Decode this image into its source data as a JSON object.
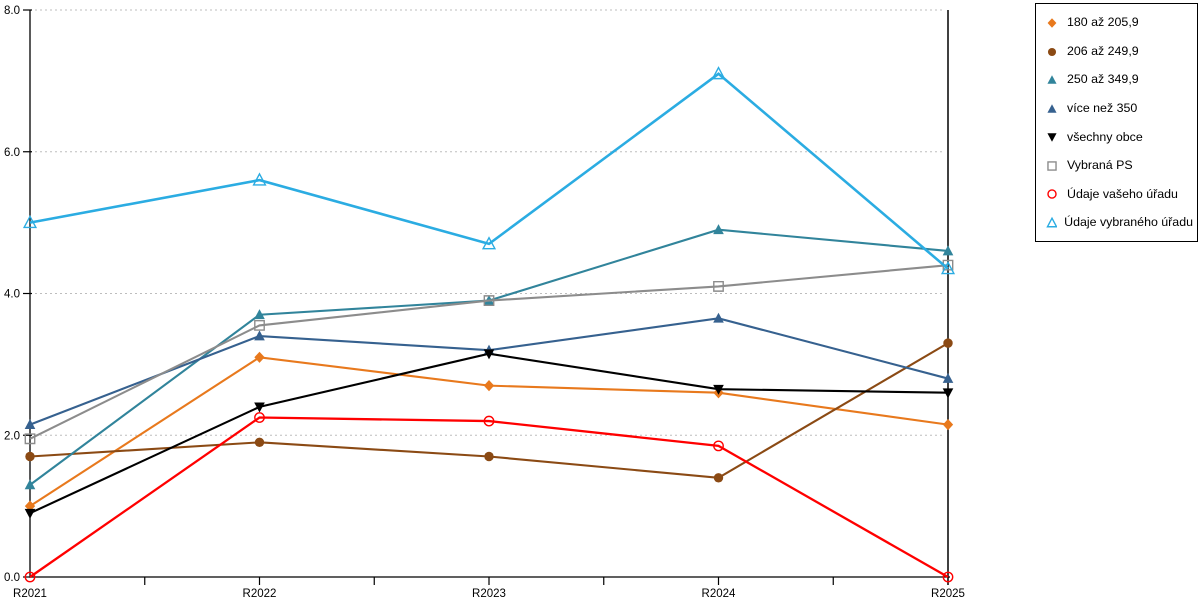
{
  "chart_data": {
    "type": "line",
    "title": "",
    "xlabel": "",
    "ylabel": "",
    "categories": [
      "R2021",
      "R2022",
      "R2023",
      "R2024",
      "R2025"
    ],
    "yticks": [
      "0.0",
      "2.0",
      "4.0",
      "6.0",
      "8.0"
    ],
    "ylim": [
      0,
      8
    ],
    "grid": "horizontal-dotted",
    "legend_position": "top-right-outside",
    "colors": {
      "axis": "#000000",
      "gridline": "#bdbdbd",
      "background": "#ffffff"
    },
    "series": [
      {
        "name": "180 až 205,9",
        "color": "#e8791d",
        "marker": "diamond",
        "marker_fill": "solid",
        "values": [
          1.0,
          3.1,
          2.7,
          2.6,
          2.15
        ]
      },
      {
        "name": "206 až 249,9",
        "color": "#8b4a14",
        "marker": "circle",
        "marker_fill": "solid",
        "values": [
          1.7,
          1.9,
          1.7,
          1.4,
          3.3
        ]
      },
      {
        "name": "250 až 349,9",
        "color": "#31849b",
        "marker": "triangle-up",
        "marker_fill": "solid",
        "values": [
          1.3,
          3.7,
          3.9,
          4.9,
          4.6
        ]
      },
      {
        "name": "více než 350",
        "color": "#36618f",
        "marker": "triangle-up",
        "marker_fill": "solid",
        "values": [
          2.15,
          3.4,
          3.2,
          3.65,
          2.8
        ]
      },
      {
        "name": "všechny obce",
        "color": "#000000",
        "marker": "triangle-down",
        "marker_fill": "solid",
        "values": [
          0.9,
          2.4,
          3.15,
          2.65,
          2.6
        ]
      },
      {
        "name": "Vybraná PS",
        "color": "#8c8c8c",
        "marker": "square",
        "marker_fill": "open",
        "values": [
          1.95,
          3.55,
          3.9,
          4.1,
          4.4
        ]
      },
      {
        "name": "Údaje vašeho úřadu",
        "color": "#ff0000",
        "marker": "circle",
        "marker_fill": "open",
        "values": [
          0.0,
          2.25,
          2.2,
          1.85,
          0.0
        ]
      },
      {
        "name": "Údaje vybraného úřadu",
        "color": "#2bace2",
        "marker": "triangle-up",
        "marker_fill": "open",
        "values": [
          5.0,
          5.6,
          4.7,
          7.1,
          4.35
        ]
      }
    ]
  }
}
